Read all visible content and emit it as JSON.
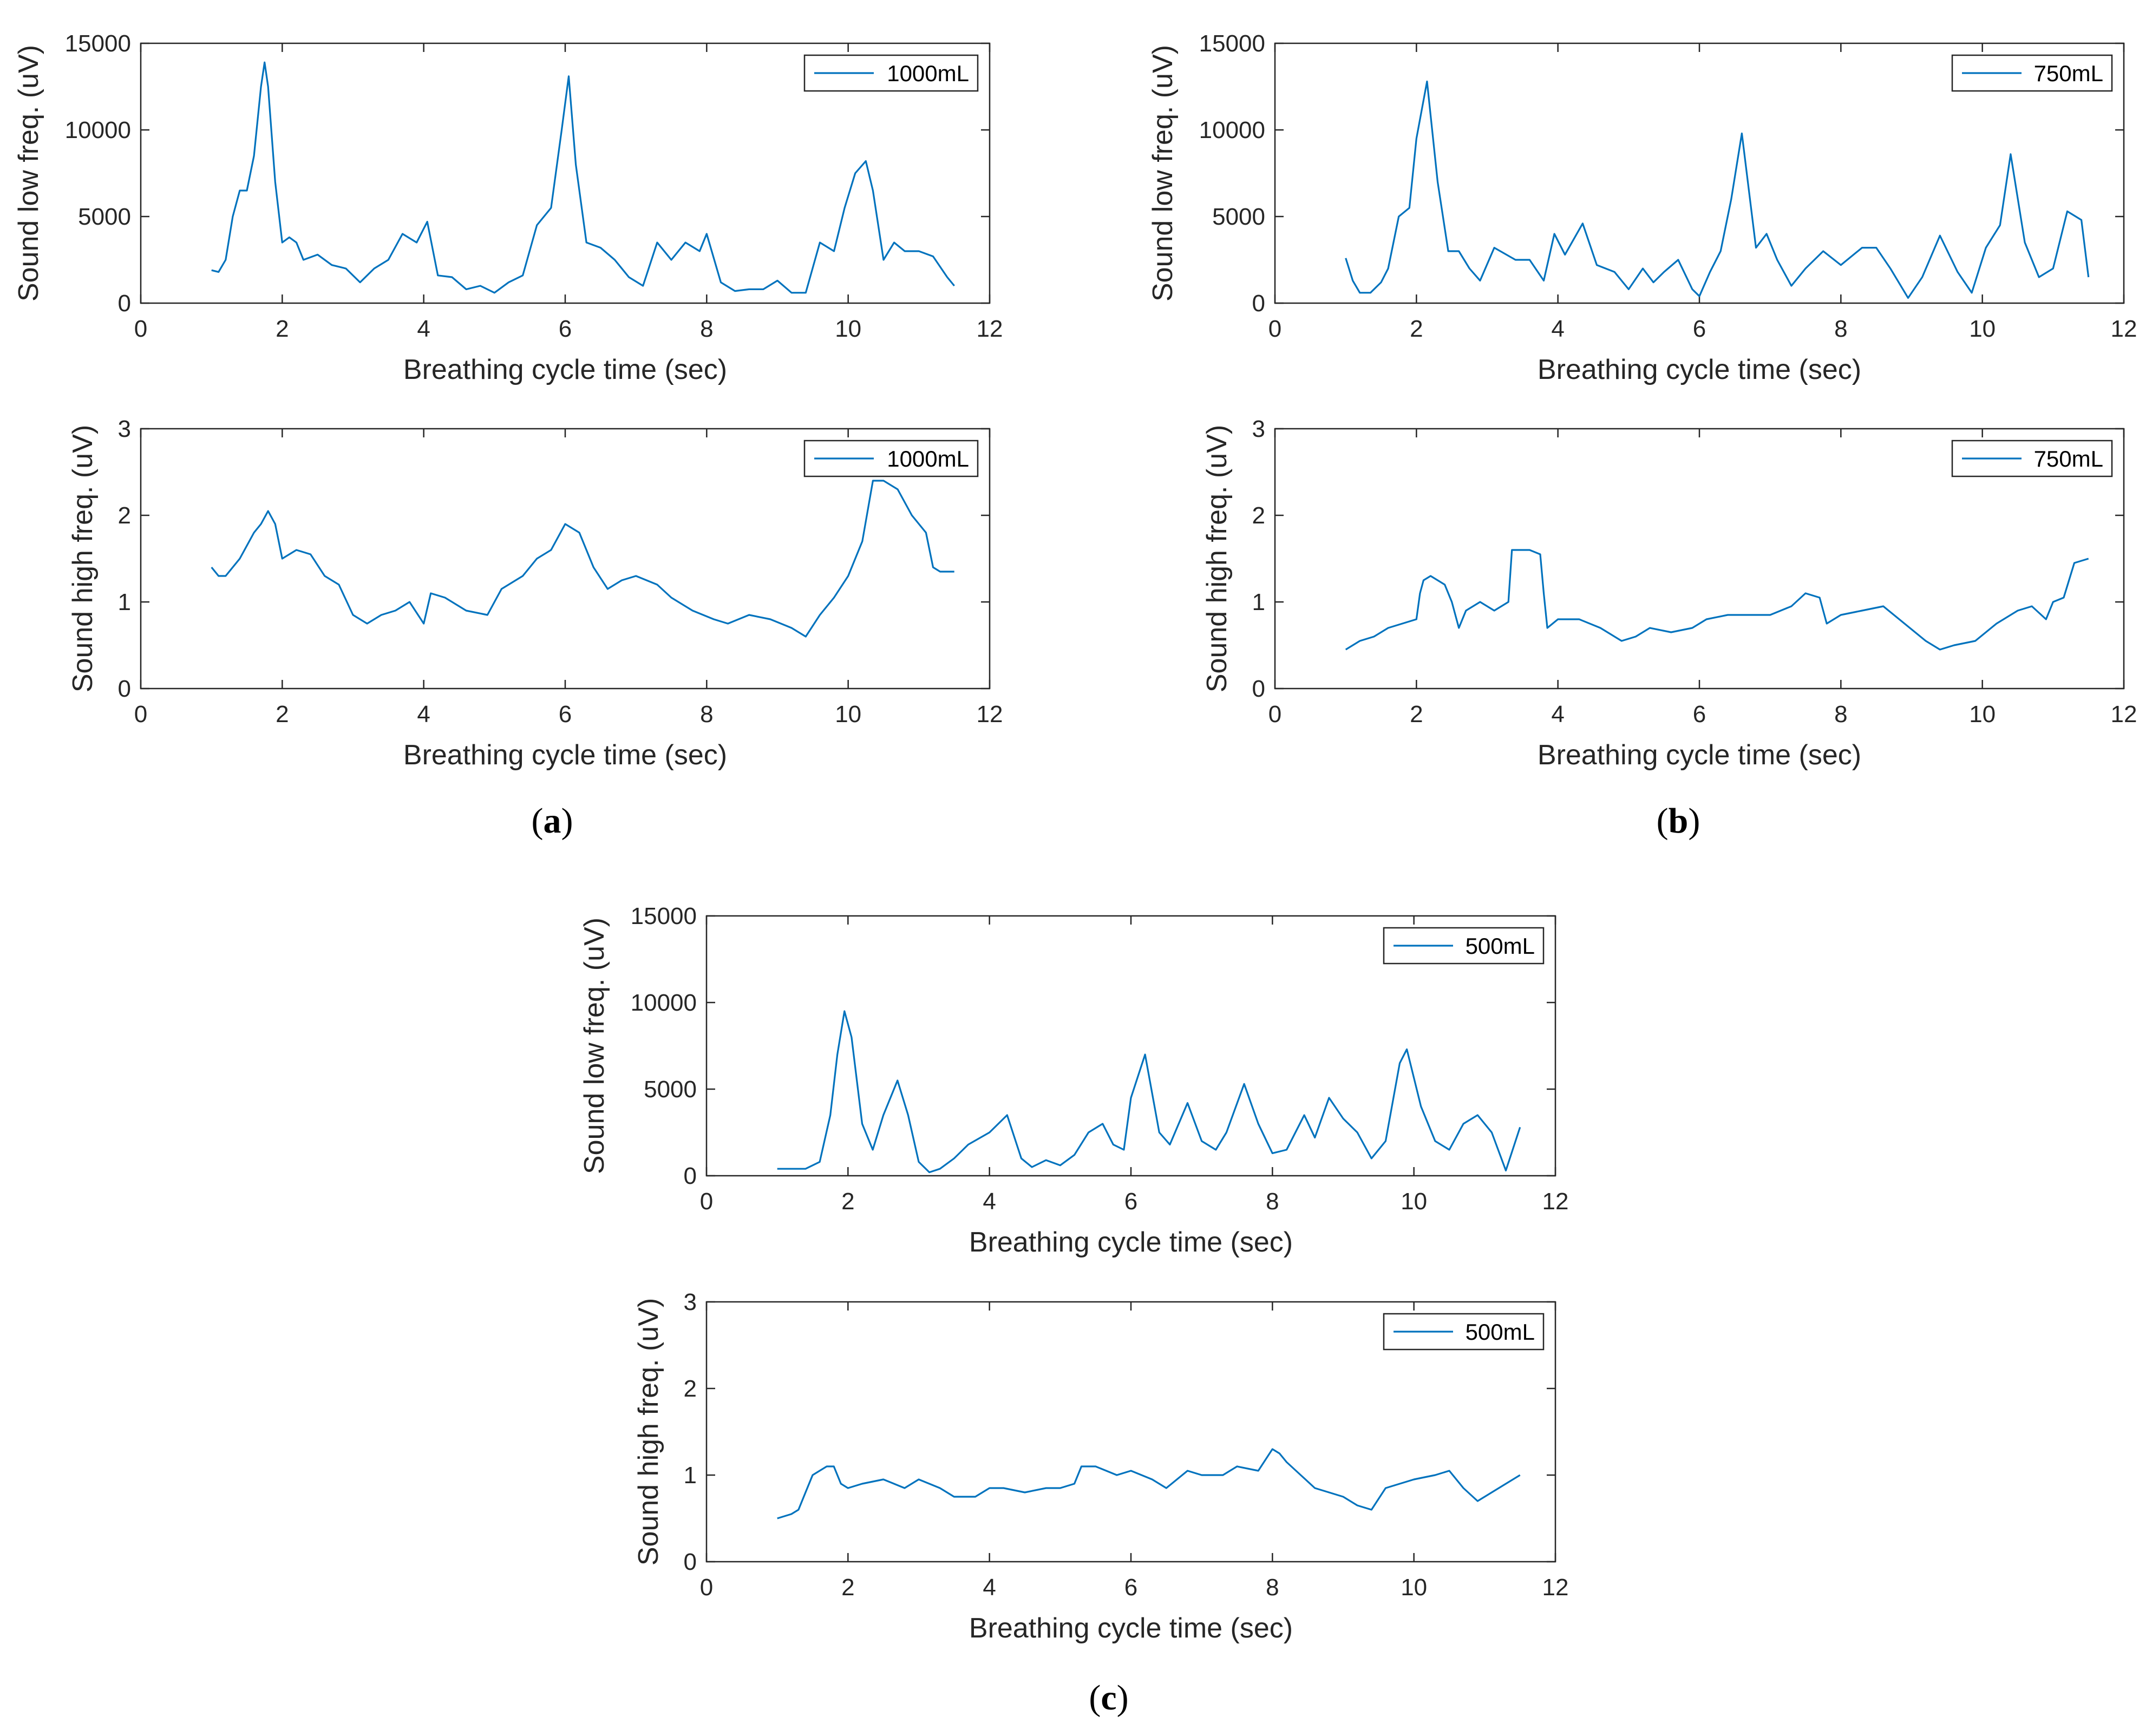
{
  "chart_data": [
    {
      "type": "line",
      "panel": "a",
      "xlabel": "Breathing cycle time (sec)",
      "ylabel": "Sound low freq. (uV)",
      "xlim": [
        0,
        12
      ],
      "ylim": [
        0,
        15000
      ],
      "xticks": [
        "0",
        "2",
        "4",
        "6",
        "8",
        "10",
        "12"
      ],
      "yticks": [
        "0",
        "5000",
        "10000",
        "15000"
      ],
      "legend": "1000mL",
      "legend_position": "top-right",
      "color": "#0072BD",
      "x": [
        1.0,
        1.1,
        1.2,
        1.3,
        1.4,
        1.5,
        1.6,
        1.7,
        1.75,
        1.8,
        1.9,
        2.0,
        2.1,
        2.2,
        2.3,
        2.5,
        2.7,
        2.9,
        3.1,
        3.3,
        3.5,
        3.7,
        3.9,
        4.05,
        4.2,
        4.4,
        4.6,
        4.8,
        5.0,
        5.2,
        5.4,
        5.6,
        5.8,
        5.95,
        6.05,
        6.15,
        6.3,
        6.5,
        6.7,
        6.9,
        7.1,
        7.3,
        7.5,
        7.7,
        7.9,
        8.0,
        8.2,
        8.4,
        8.6,
        8.8,
        9.0,
        9.2,
        9.4,
        9.6,
        9.8,
        9.95,
        10.1,
        10.25,
        10.35,
        10.5,
        10.65,
        10.8,
        11.0,
        11.2,
        11.4,
        11.5
      ],
      "values": [
        1900,
        1800,
        2500,
        5000,
        6500,
        6500,
        8500,
        12500,
        13900,
        12500,
        7000,
        3500,
        3800,
        3500,
        2500,
        2800,
        2200,
        2000,
        1200,
        2000,
        2500,
        4000,
        3500,
        4700,
        1600,
        1500,
        800,
        1000,
        600,
        1200,
        1600,
        4500,
        5500,
        10000,
        13100,
        8000,
        3500,
        3200,
        2500,
        1500,
        1000,
        3500,
        2500,
        3500,
        3000,
        4000,
        1200,
        700,
        800,
        800,
        1300,
        600,
        600,
        3500,
        3000,
        5500,
        7500,
        8200,
        6500,
        2500,
        3500,
        3000,
        3000,
        2700,
        1500,
        1000
      ]
    },
    {
      "type": "line",
      "panel": "a",
      "xlabel": "Breathing cycle time (sec)",
      "ylabel": "Sound high freq. (uV)",
      "xlim": [
        0,
        12
      ],
      "ylim": [
        0,
        3
      ],
      "xticks": [
        "0",
        "2",
        "4",
        "6",
        "8",
        "10",
        "12"
      ],
      "yticks": [
        "0",
        "1",
        "2",
        "3"
      ],
      "legend": "1000mL",
      "legend_position": "top-right",
      "color": "#0072BD",
      "x": [
        1.0,
        1.1,
        1.2,
        1.4,
        1.6,
        1.7,
        1.8,
        1.9,
        2.0,
        2.2,
        2.4,
        2.6,
        2.8,
        3.0,
        3.2,
        3.4,
        3.6,
        3.8,
        4.0,
        4.1,
        4.3,
        4.6,
        4.9,
        5.1,
        5.4,
        5.6,
        5.8,
        6.0,
        6.2,
        6.4,
        6.6,
        6.8,
        7.0,
        7.3,
        7.5,
        7.8,
        8.1,
        8.3,
        8.6,
        8.9,
        9.2,
        9.4,
        9.6,
        9.8,
        10.0,
        10.2,
        10.35,
        10.5,
        10.7,
        10.9,
        11.1,
        11.2,
        11.3,
        11.5
      ],
      "values": [
        1.4,
        1.3,
        1.3,
        1.5,
        1.8,
        1.9,
        2.05,
        1.9,
        1.5,
        1.6,
        1.55,
        1.3,
        1.2,
        0.85,
        0.75,
        0.85,
        0.9,
        1.0,
        0.75,
        1.1,
        1.05,
        0.9,
        0.85,
        1.15,
        1.3,
        1.5,
        1.6,
        1.9,
        1.8,
        1.4,
        1.15,
        1.25,
        1.3,
        1.2,
        1.05,
        0.9,
        0.8,
        0.75,
        0.85,
        0.8,
        0.7,
        0.6,
        0.85,
        1.05,
        1.3,
        1.7,
        2.4,
        2.4,
        2.3,
        2.0,
        1.8,
        1.4,
        1.35,
        1.35
      ]
    },
    {
      "type": "line",
      "panel": "b",
      "xlabel": "Breathing cycle time (sec)",
      "ylabel": "Sound low freq. (uV)",
      "xlim": [
        0,
        12
      ],
      "ylim": [
        0,
        15000
      ],
      "xticks": [
        "0",
        "2",
        "4",
        "6",
        "8",
        "10",
        "12"
      ],
      "yticks": [
        "0",
        "5000",
        "10000",
        "15000"
      ],
      "legend": "750mL",
      "legend_position": "top-right",
      "color": "#0072BD",
      "x": [
        1.0,
        1.1,
        1.2,
        1.35,
        1.5,
        1.6,
        1.75,
        1.9,
        2.0,
        2.15,
        2.3,
        2.45,
        2.6,
        2.75,
        2.9,
        3.1,
        3.4,
        3.6,
        3.8,
        3.95,
        4.1,
        4.35,
        4.55,
        4.8,
        5.0,
        5.2,
        5.35,
        5.5,
        5.7,
        5.9,
        6.0,
        6.15,
        6.3,
        6.45,
        6.6,
        6.8,
        6.95,
        7.1,
        7.3,
        7.5,
        7.75,
        8.0,
        8.3,
        8.5,
        8.7,
        8.95,
        9.15,
        9.4,
        9.65,
        9.85,
        10.05,
        10.25,
        10.4,
        10.6,
        10.8,
        11.0,
        11.2,
        11.4,
        11.5
      ],
      "values": [
        2600,
        1300,
        600,
        600,
        1200,
        2000,
        5000,
        5500,
        9500,
        12800,
        7000,
        3000,
        3000,
        2000,
        1300,
        3200,
        2500,
        2500,
        1300,
        4000,
        2800,
        4600,
        2200,
        1800,
        800,
        2000,
        1200,
        1800,
        2500,
        800,
        400,
        1800,
        3000,
        6000,
        9800,
        3200,
        4000,
        2500,
        1000,
        2000,
        3000,
        2200,
        3200,
        3200,
        2000,
        300,
        1500,
        3900,
        1800,
        600,
        3200,
        4500,
        8600,
        3500,
        1500,
        2000,
        5300,
        4800,
        1500
      ]
    },
    {
      "type": "line",
      "panel": "b",
      "xlabel": "Breathing cycle time (sec)",
      "ylabel": "Sound high freq. (uV)",
      "xlim": [
        0,
        12
      ],
      "ylim": [
        0,
        3
      ],
      "xticks": [
        "0",
        "2",
        "4",
        "6",
        "8",
        "10",
        "12"
      ],
      "yticks": [
        "0",
        "1",
        "2",
        "3"
      ],
      "legend": "750mL",
      "legend_position": "top-right",
      "color": "#0072BD",
      "x": [
        1.0,
        1.2,
        1.4,
        1.6,
        1.8,
        2.0,
        2.05,
        2.1,
        2.2,
        2.4,
        2.5,
        2.6,
        2.7,
        2.9,
        3.1,
        3.3,
        3.35,
        3.4,
        3.6,
        3.75,
        3.8,
        3.85,
        4.0,
        4.3,
        4.6,
        4.9,
        5.1,
        5.3,
        5.6,
        5.9,
        6.1,
        6.4,
        6.7,
        7.0,
        7.3,
        7.5,
        7.7,
        7.8,
        8.0,
        8.3,
        8.6,
        8.9,
        9.2,
        9.4,
        9.6,
        9.9,
        10.2,
        10.5,
        10.7,
        10.9,
        11.0,
        11.15,
        11.3,
        11.5
      ],
      "values": [
        0.45,
        0.55,
        0.6,
        0.7,
        0.75,
        0.8,
        1.1,
        1.25,
        1.3,
        1.2,
        1.0,
        0.7,
        0.9,
        1.0,
        0.9,
        1.0,
        1.6,
        1.6,
        1.6,
        1.55,
        1.1,
        0.7,
        0.8,
        0.8,
        0.7,
        0.55,
        0.6,
        0.7,
        0.65,
        0.7,
        0.8,
        0.85,
        0.85,
        0.85,
        0.95,
        1.1,
        1.05,
        0.75,
        0.85,
        0.9,
        0.95,
        0.75,
        0.55,
        0.45,
        0.5,
        0.55,
        0.75,
        0.9,
        0.95,
        0.8,
        1.0,
        1.05,
        1.45,
        1.5
      ]
    },
    {
      "type": "line",
      "panel": "c",
      "xlabel": "Breathing cycle time (sec)",
      "ylabel": "Sound low freq. (uV)",
      "xlim": [
        0,
        12
      ],
      "ylim": [
        0,
        15000
      ],
      "xticks": [
        "0",
        "2",
        "4",
        "6",
        "8",
        "10",
        "12"
      ],
      "yticks": [
        "0",
        "5000",
        "10000",
        "15000"
      ],
      "legend": "500mL",
      "legend_position": "top-right",
      "color": "#0072BD",
      "x": [
        1.0,
        1.2,
        1.4,
        1.6,
        1.75,
        1.85,
        1.95,
        2.05,
        2.2,
        2.35,
        2.5,
        2.7,
        2.85,
        3.0,
        3.15,
        3.3,
        3.5,
        3.7,
        4.0,
        4.25,
        4.45,
        4.6,
        4.8,
        5.0,
        5.2,
        5.4,
        5.6,
        5.75,
        5.9,
        6.0,
        6.2,
        6.4,
        6.55,
        6.8,
        7.0,
        7.2,
        7.35,
        7.6,
        7.8,
        8.0,
        8.2,
        8.45,
        8.6,
        8.8,
        9.0,
        9.2,
        9.4,
        9.6,
        9.8,
        9.9,
        10.1,
        10.3,
        10.5,
        10.7,
        10.9,
        11.1,
        11.3,
        11.5
      ],
      "values": [
        400,
        400,
        400,
        800,
        3500,
        7000,
        9500,
        8000,
        3000,
        1500,
        3500,
        5500,
        3500,
        800,
        200,
        400,
        1000,
        1800,
        2500,
        3500,
        1000,
        500,
        900,
        600,
        1200,
        2500,
        3000,
        1800,
        1500,
        4500,
        7000,
        2500,
        1800,
        4200,
        2000,
        1500,
        2500,
        5300,
        3000,
        1300,
        1500,
        3500,
        2200,
        4500,
        3300,
        2500,
        1000,
        2000,
        6500,
        7300,
        4000,
        2000,
        1500,
        3000,
        3500,
        2500,
        300,
        2800
      ]
    },
    {
      "type": "line",
      "panel": "c",
      "xlabel": "Breathing cycle time (sec)",
      "ylabel": "Sound high freq. (uV)",
      "xlim": [
        0,
        12
      ],
      "ylim": [
        0,
        3
      ],
      "xticks": [
        "0",
        "2",
        "4",
        "6",
        "8",
        "10",
        "12"
      ],
      "yticks": [
        "0",
        "1",
        "2",
        "3"
      ],
      "legend": "500mL",
      "legend_position": "top-right",
      "color": "#0072BD",
      "x": [
        1.0,
        1.2,
        1.3,
        1.4,
        1.5,
        1.7,
        1.8,
        1.9,
        2.0,
        2.2,
        2.5,
        2.8,
        3.0,
        3.3,
        3.5,
        3.8,
        4.0,
        4.2,
        4.5,
        4.8,
        5.0,
        5.2,
        5.3,
        5.5,
        5.8,
        6.0,
        6.3,
        6.5,
        6.8,
        7.0,
        7.3,
        7.5,
        7.8,
        8.0,
        8.1,
        8.2,
        8.4,
        8.6,
        8.8,
        9.0,
        9.2,
        9.4,
        9.6,
        9.8,
        10.0,
        10.3,
        10.5,
        10.7,
        10.9,
        11.1,
        11.3,
        11.5
      ],
      "values": [
        0.5,
        0.55,
        0.6,
        0.8,
        1.0,
        1.1,
        1.1,
        0.9,
        0.85,
        0.9,
        0.95,
        0.85,
        0.95,
        0.85,
        0.75,
        0.75,
        0.85,
        0.85,
        0.8,
        0.85,
        0.85,
        0.9,
        1.1,
        1.1,
        1.0,
        1.05,
        0.95,
        0.85,
        1.05,
        1.0,
        1.0,
        1.1,
        1.05,
        1.3,
        1.25,
        1.15,
        1.0,
        0.85,
        0.8,
        0.75,
        0.65,
        0.6,
        0.85,
        0.9,
        0.95,
        1.0,
        1.05,
        0.85,
        0.7,
        0.8,
        0.9,
        1.0
      ]
    }
  ],
  "panel_labels": {
    "a": "a",
    "b": "b",
    "c": "c"
  }
}
